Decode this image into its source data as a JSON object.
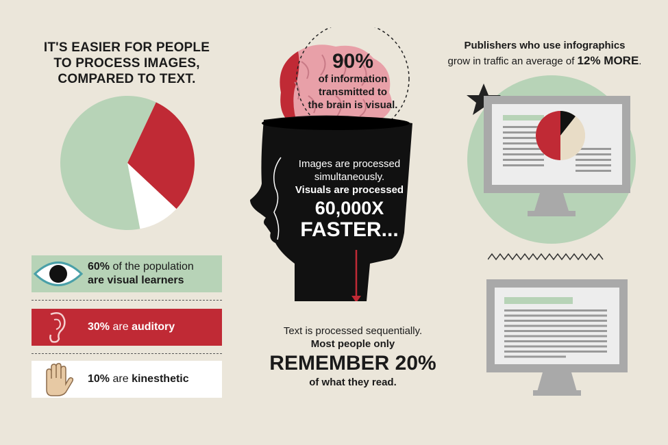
{
  "left": {
    "title_lines": [
      "IT'S EASIER FOR PEOPLE",
      "TO PROCESS IMAGES,",
      "COMPARED TO TEXT."
    ],
    "pie": {
      "slices": [
        {
          "label": "visual",
          "percent": 60,
          "color": "#b7d3b7"
        },
        {
          "label": "auditory",
          "percent": 30,
          "color": "#c02a35"
        },
        {
          "label": "kinesthetic",
          "percent": 10,
          "color": "#ffffff"
        }
      ]
    },
    "rows": [
      {
        "pct": "60%",
        "text1": "of the population",
        "text2": "are visual learners",
        "icon": "eye-icon"
      },
      {
        "pct": "30%",
        "text1": "are",
        "text2": "auditory",
        "icon": "ear-icon"
      },
      {
        "pct": "10%",
        "text1": "are",
        "text2": "kinesthetic",
        "icon": "hand-icon"
      }
    ]
  },
  "center": {
    "brain_pct": "90%",
    "brain_lines": [
      "of information",
      "transmitted to",
      "the brain is visual."
    ],
    "head_line1": "Images are processed",
    "head_line2": "simultaneously.",
    "head_line3": "Visuals are processed",
    "head_big1": "60,000X",
    "head_big2": "FASTER...",
    "text_line1": "Text is processed sequentially.",
    "text_line2": "Most people only",
    "text_big": "REMEMBER 20%",
    "text_line3": "of what they read."
  },
  "right": {
    "line1": "Publishers who use infographics",
    "line2_pre": "grow in traffic an average of",
    "line2_bold": "12% MORE",
    "line2_post": "."
  },
  "colors": {
    "background": "#ebe6da",
    "green": "#b7d3b7",
    "red": "#c02a35",
    "dark": "#111111",
    "pink": "#e8a0a8",
    "monitor": "#a9a9a9"
  }
}
